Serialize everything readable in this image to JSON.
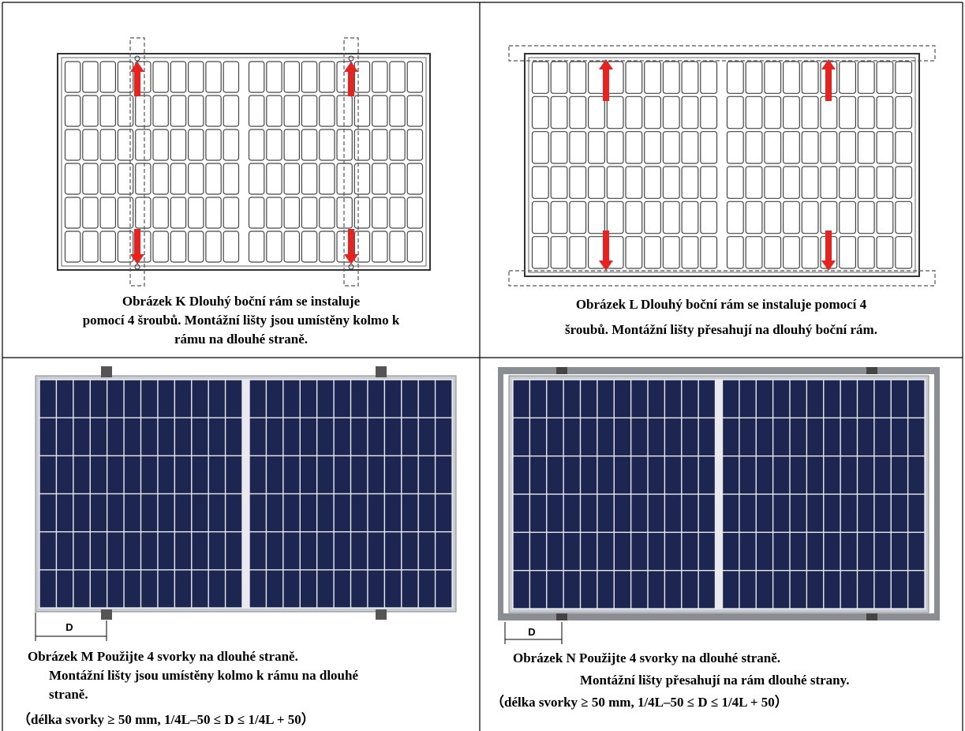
{
  "figures": [
    {
      "caption": [
        "Obrázek K Dlouhý boční rám se instaluje",
        "pomocí 4 šroubů. Montážní lišty jsou umístěny kolmo k",
        "rámu na dlouhé straně."
      ]
    },
    {
      "caption": [
        "Obrázek L Dlouhý boční rám se instaluje pomocí 4",
        "šroubů. Montážní lišty přesahují na dlouhý boční rám."
      ]
    },
    {
      "label": "D",
      "caption": [
        "Obrázek M Použijte 4 svorky na dlouhé straně.",
        "Montážní lišty jsou umístěny kolmo k rámu na dlouhé",
        "straně.",
        "（délka svorky ≥ 50 mm, 1/4L–50 ≤ D ≤ 1/4L + 50）"
      ]
    },
    {
      "label": "D",
      "caption": [
        "Obrázek N Použijte 4 svorky na dlouhé straně.",
        "Montážní lišty přesahují na rám dlouhé strany.",
        "（délka svorky ≥ 50 mm, 1/4L–50 ≤ D ≤ 1/4L + 50）"
      ]
    }
  ]
}
